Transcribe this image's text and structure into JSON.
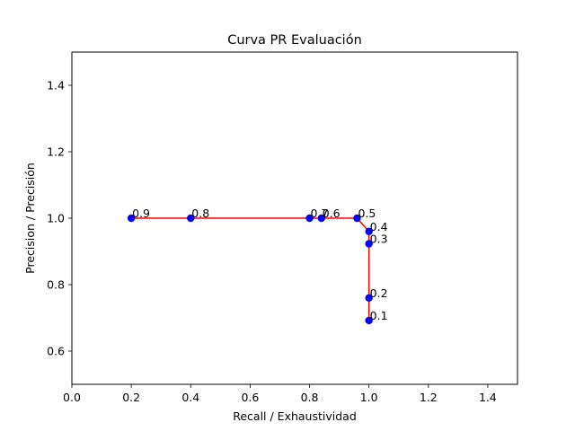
{
  "chart_data": {
    "type": "line",
    "title": "Curva PR Evaluación",
    "xlabel": "Recall / Exhaustividad",
    "ylabel": "Precision / Precisión",
    "xlim": [
      0.0,
      1.5
    ],
    "ylim": [
      0.5,
      1.5
    ],
    "grid": false,
    "line_color": "#ff0000",
    "marker_color": "#0000ff",
    "x_ticks": [
      0.0,
      0.2,
      0.4,
      0.6,
      0.8,
      1.0,
      1.2,
      1.4
    ],
    "x_tick_labels": [
      "0.0",
      "0.2",
      "0.4",
      "0.6",
      "0.8",
      "1.0",
      "1.2",
      "1.4"
    ],
    "y_ticks": [
      0.6,
      0.8,
      1.0,
      1.2,
      1.4
    ],
    "y_tick_labels": [
      "0.6",
      "0.8",
      "1.0",
      "1.2",
      "1.4"
    ],
    "points": [
      {
        "x": 0.2,
        "y": 1.0,
        "label": "0.9"
      },
      {
        "x": 0.4,
        "y": 1.0,
        "label": "0.8"
      },
      {
        "x": 0.8,
        "y": 1.0,
        "label": "0.7"
      },
      {
        "x": 0.84,
        "y": 1.0,
        "label": "0.6"
      },
      {
        "x": 0.96,
        "y": 1.0,
        "label": "0.5"
      },
      {
        "x": 1.0,
        "y": 0.96,
        "label": "0.4"
      },
      {
        "x": 1.0,
        "y": 0.923,
        "label": "0.3"
      },
      {
        "x": 1.0,
        "y": 0.76,
        "label": "0.2"
      },
      {
        "x": 1.0,
        "y": 0.692,
        "label": "0.1"
      }
    ]
  }
}
